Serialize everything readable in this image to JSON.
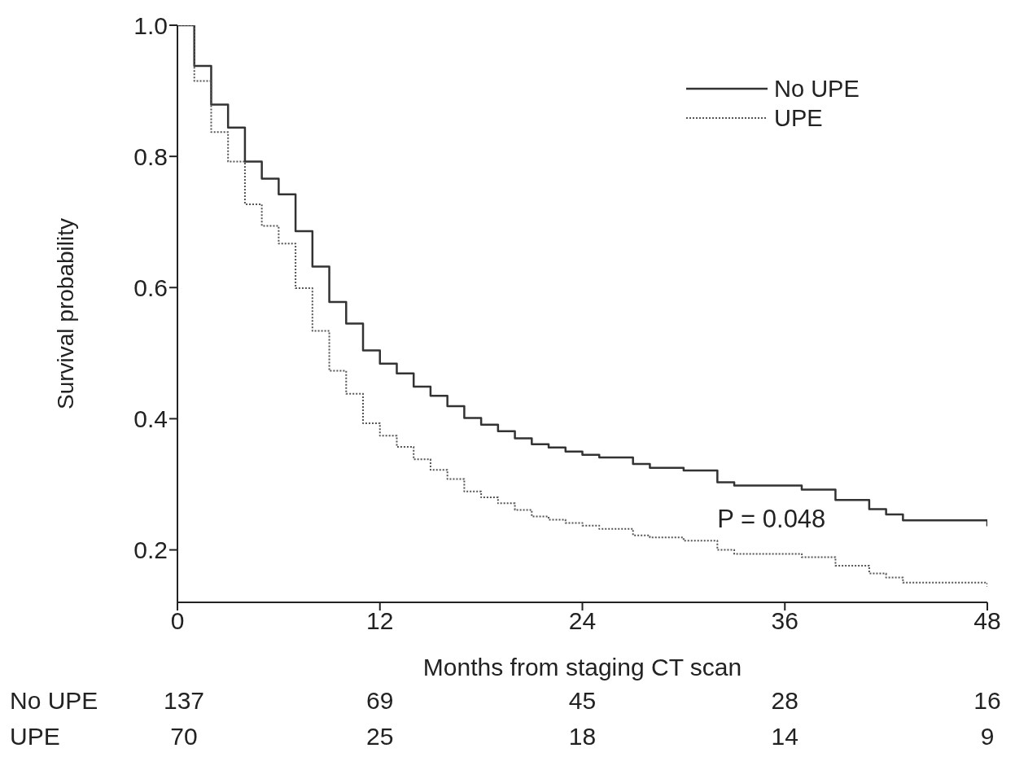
{
  "chart_data": {
    "type": "step",
    "xlabel": "Months from staging CT scan",
    "ylabel": "Survival probability",
    "xlim": [
      0,
      48
    ],
    "xticks": [
      0,
      12,
      24,
      36,
      48
    ],
    "ylim": [
      0.12,
      1.0
    ],
    "yticks": [
      0.2,
      0.4,
      0.6,
      0.8,
      {
        "value": 1.0,
        "label": "1.0"
      }
    ],
    "legend": "top right",
    "series": [
      {
        "name": "No UPE",
        "color": "#333333",
        "line_style": "solid",
        "x": [
          0,
          1,
          2,
          3,
          4,
          5,
          6,
          7,
          8,
          9,
          10,
          11,
          12,
          13,
          14,
          15,
          16,
          17,
          18,
          19,
          20,
          21,
          22,
          23,
          24,
          25,
          27,
          28,
          30,
          32,
          33,
          37,
          39,
          41,
          42,
          43,
          48
        ],
        "values": [
          1.0,
          0.938,
          0.879,
          0.844,
          0.792,
          0.766,
          0.742,
          0.686,
          0.632,
          0.578,
          0.545,
          0.504,
          0.484,
          0.469,
          0.449,
          0.435,
          0.419,
          0.401,
          0.391,
          0.381,
          0.37,
          0.361,
          0.356,
          0.35,
          0.345,
          0.341,
          0.331,
          0.325,
          0.321,
          0.303,
          0.298,
          0.292,
          0.276,
          0.262,
          0.254,
          0.245,
          0.236
        ]
      },
      {
        "name": "UPE",
        "color": "#555555",
        "line_style": "dotted",
        "x": [
          0,
          1,
          2,
          3,
          4,
          5,
          6,
          7,
          8,
          9,
          10,
          11,
          12,
          13,
          14,
          15,
          16,
          17,
          18,
          19,
          20,
          21,
          22,
          23,
          24,
          25,
          27,
          28,
          30,
          32,
          33,
          37,
          39,
          41,
          42,
          43,
          48
        ],
        "values": [
          1.0,
          0.915,
          0.837,
          0.792,
          0.727,
          0.694,
          0.667,
          0.599,
          0.534,
          0.473,
          0.438,
          0.393,
          0.374,
          0.357,
          0.338,
          0.322,
          0.308,
          0.289,
          0.28,
          0.271,
          0.261,
          0.251,
          0.246,
          0.241,
          0.237,
          0.232,
          0.222,
          0.219,
          0.214,
          0.2,
          0.194,
          0.189,
          0.176,
          0.164,
          0.158,
          0.15,
          0.144
        ]
      }
    ],
    "annotations": [
      "P = 0.048",
      "No UPE",
      "137",
      "69",
      "45",
      "28",
      "16",
      "UPE",
      "70",
      "25",
      "18",
      "14",
      "9"
    ]
  }
}
